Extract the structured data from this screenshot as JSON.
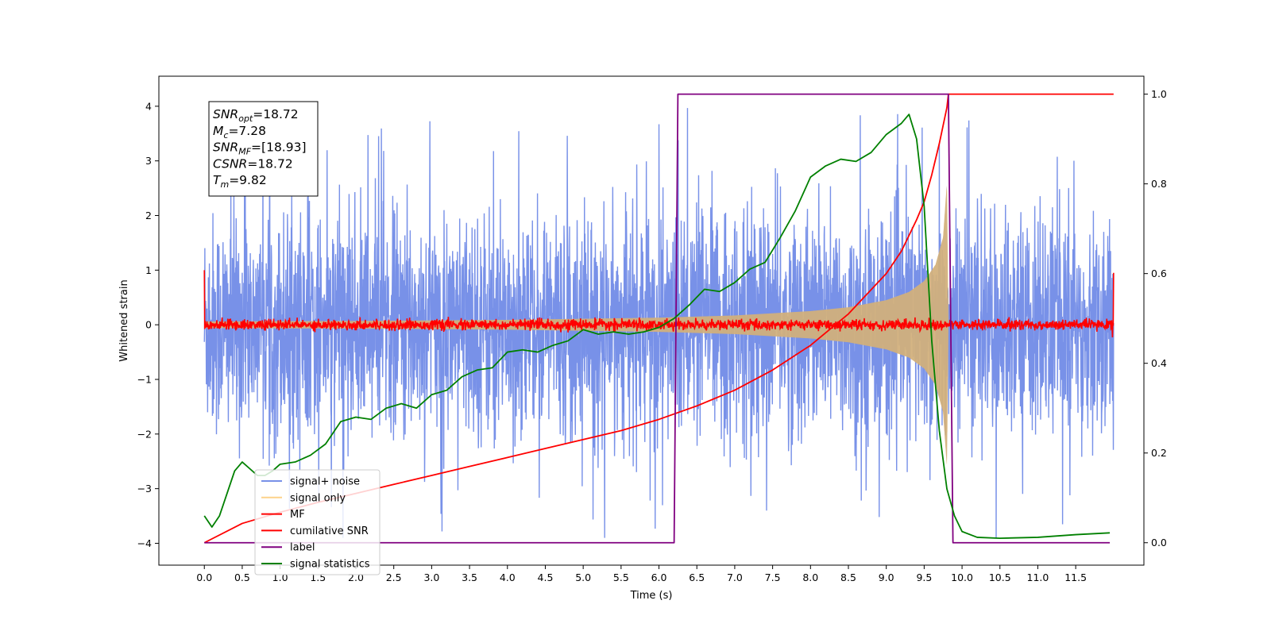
{
  "chart_data": {
    "type": "line",
    "xlabel": "Time (s)",
    "ylabel": "Whitened strain",
    "ylabel_right": "",
    "xlim": [
      -0.6,
      12.4
    ],
    "ylim": [
      -4.4,
      4.55
    ],
    "ylim_right": [
      -0.05,
      1.04
    ],
    "x_ticks": [
      0.0,
      0.5,
      1.0,
      1.5,
      2.0,
      2.5,
      3.0,
      3.5,
      4.0,
      4.5,
      5.0,
      5.5,
      6.0,
      6.5,
      7.0,
      7.5,
      8.0,
      8.5,
      9.0,
      9.5,
      10.0,
      10.5,
      11.0,
      11.5
    ],
    "x_tick_labels": [
      "0.0",
      "0.5",
      "1.0",
      "1.5",
      "2.0",
      "2.5",
      "3.0",
      "3.5",
      "4.0",
      "4.5",
      "5.0",
      "5.5",
      "6.0",
      "6.5",
      "7.0",
      "7.5",
      "8.0",
      "8.5",
      "9.0",
      "9.5",
      "10.0",
      "10.5",
      "11.0",
      "11.5"
    ],
    "y_ticks": [
      -4,
      -3,
      -2,
      -1,
      0,
      1,
      2,
      3,
      4
    ],
    "y_tick_labels": [
      "−4",
      "−3",
      "−2",
      "−1",
      "0",
      "1",
      "2",
      "3",
      "4"
    ],
    "y_ticks_right": [
      0.0,
      0.2,
      0.4,
      0.6,
      0.8,
      1.0
    ],
    "y_tick_labels_right": [
      "0.0",
      "0.2",
      "0.4",
      "0.6",
      "0.8",
      "1.0"
    ],
    "grid": false,
    "legend_position": "lower-left",
    "annotation": {
      "position": "top-left",
      "lines": [
        {
          "base": "SNR",
          "sub": "opt",
          "value": "=18.72"
        },
        {
          "base": "M",
          "sub": "c",
          "value": "=7.28"
        },
        {
          "base": "SNR",
          "sub": "MF",
          "value": "=[18.93]"
        },
        {
          "base": "CSNR",
          "sub": "",
          "value": "=18.72"
        },
        {
          "base": "T",
          "sub": "m",
          "value": "=9.82"
        }
      ]
    },
    "series": [
      {
        "name": "signal+ noise",
        "axis": "left",
        "color": "#7891e8",
        "kind": "noise_band",
        "x_range": [
          0.0,
          12.0
        ],
        "typical_peak": 2.4,
        "max_peak": 4.15,
        "min_trough": -3.9
      },
      {
        "name": "signal only",
        "axis": "left",
        "color": "#fdd28a",
        "kind": "chirp_envelope",
        "x_range": [
          0.0,
          9.82
        ],
        "envelope": [
          [
            0.0,
            0.06
          ],
          [
            2.0,
            0.07
          ],
          [
            4.0,
            0.09
          ],
          [
            6.0,
            0.13
          ],
          [
            7.0,
            0.17
          ],
          [
            8.0,
            0.25
          ],
          [
            8.5,
            0.32
          ],
          [
            9.0,
            0.45
          ],
          [
            9.3,
            0.6
          ],
          [
            9.5,
            0.8
          ],
          [
            9.65,
            1.1
          ],
          [
            9.75,
            1.6
          ],
          [
            9.8,
            2.6
          ],
          [
            9.82,
            0.0
          ]
        ]
      },
      {
        "name": "MF",
        "axis": "left",
        "color": "#ff0000",
        "kind": "noisy_zero",
        "x_range": [
          0.0,
          12.0
        ],
        "amplitude": 0.12,
        "start_value": 1.0,
        "end_value": 0.95
      },
      {
        "name": "cumilative SNR",
        "axis": "right",
        "color": "#ff0000",
        "x": [
          0.0,
          0.5,
          1.0,
          1.5,
          2.0,
          2.5,
          3.0,
          3.5,
          4.0,
          4.5,
          5.0,
          5.5,
          6.0,
          6.5,
          7.0,
          7.5,
          8.0,
          8.5,
          9.0,
          9.2,
          9.4,
          9.5,
          9.6,
          9.7,
          9.75,
          9.8,
          9.82,
          12.0
        ],
        "y": [
          0.0,
          0.043,
          0.068,
          0.09,
          0.11,
          0.13,
          0.15,
          0.17,
          0.19,
          0.21,
          0.23,
          0.25,
          0.275,
          0.305,
          0.34,
          0.385,
          0.44,
          0.51,
          0.6,
          0.65,
          0.72,
          0.76,
          0.82,
          0.89,
          0.93,
          0.97,
          1.0,
          1.0
        ]
      },
      {
        "name": "label",
        "axis": "right",
        "color": "#800080",
        "x": [
          0.0,
          6.2,
          6.25,
          9.82,
          9.88,
          11.95
        ],
        "y": [
          0.0,
          0.0,
          1.0,
          1.0,
          0.0,
          0.0
        ]
      },
      {
        "name": "signal statistics",
        "axis": "right",
        "color": "#008000",
        "x": [
          0.0,
          0.1,
          0.2,
          0.3,
          0.4,
          0.5,
          0.6,
          0.7,
          0.8,
          0.9,
          1.0,
          1.2,
          1.4,
          1.6,
          1.8,
          2.0,
          2.2,
          2.4,
          2.6,
          2.8,
          3.0,
          3.2,
          3.4,
          3.6,
          3.8,
          4.0,
          4.2,
          4.4,
          4.6,
          4.8,
          5.0,
          5.2,
          5.4,
          5.6,
          5.8,
          6.0,
          6.2,
          6.4,
          6.6,
          6.8,
          7.0,
          7.2,
          7.4,
          7.6,
          7.8,
          8.0,
          8.2,
          8.4,
          8.6,
          8.8,
          9.0,
          9.2,
          9.3,
          9.4,
          9.5,
          9.6,
          9.7,
          9.8,
          9.9,
          10.0,
          10.2,
          10.5,
          11.0,
          11.5,
          11.95
        ],
        "y": [
          0.06,
          0.035,
          0.06,
          0.11,
          0.16,
          0.18,
          0.165,
          0.15,
          0.15,
          0.16,
          0.175,
          0.18,
          0.195,
          0.22,
          0.27,
          0.28,
          0.275,
          0.3,
          0.31,
          0.3,
          0.33,
          0.34,
          0.37,
          0.385,
          0.39,
          0.425,
          0.43,
          0.425,
          0.44,
          0.45,
          0.475,
          0.465,
          0.47,
          0.465,
          0.47,
          0.48,
          0.5,
          0.53,
          0.565,
          0.56,
          0.58,
          0.61,
          0.625,
          0.68,
          0.74,
          0.815,
          0.84,
          0.855,
          0.85,
          0.87,
          0.91,
          0.935,
          0.955,
          0.9,
          0.75,
          0.45,
          0.25,
          0.12,
          0.06,
          0.025,
          0.012,
          0.01,
          0.012,
          0.018,
          0.022
        ]
      }
    ]
  }
}
